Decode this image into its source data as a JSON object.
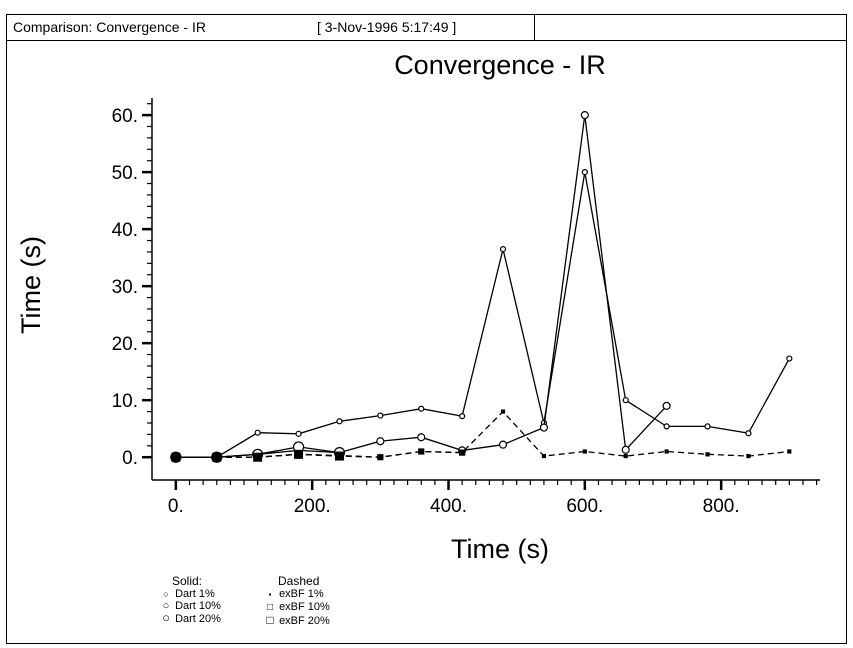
{
  "window": {
    "title": "Comparison: Convergence - IR",
    "timestamp": "[ 3-Nov-1996 5:17:49 ]"
  },
  "chart_data": {
    "type": "line",
    "title": "Convergence - IR",
    "xlabel": "Time (s)",
    "ylabel": "Time (s)",
    "xlim": [
      -35,
      945
    ],
    "ylim": [
      -4,
      63
    ],
    "x_ticks": [
      0,
      200,
      400,
      600,
      800
    ],
    "x_tick_labels": [
      "0.",
      "200.",
      "400.",
      "600.",
      "800."
    ],
    "y_ticks": [
      0,
      10,
      20,
      30,
      40,
      50,
      60
    ],
    "y_tick_labels": [
      "0.",
      "10.",
      "20.",
      "30.",
      "40.",
      "50.",
      "60."
    ],
    "grid": false,
    "series": [
      {
        "name": "Dart 1%",
        "style": "solid",
        "marker": "circle-small",
        "points": [
          [
            0,
            0
          ],
          [
            60,
            0
          ],
          [
            120,
            4.3
          ],
          [
            180,
            4.1
          ],
          [
            240,
            6.3
          ],
          [
            300,
            7.3
          ],
          [
            360,
            8.5
          ],
          [
            420,
            7.2
          ],
          [
            480,
            36.5
          ],
          [
            540,
            6
          ],
          [
            600,
            50
          ],
          [
            660,
            10
          ],
          [
            720,
            5.4
          ],
          [
            780,
            5.4
          ],
          [
            840,
            4.2
          ],
          [
            900,
            17.3
          ]
        ]
      },
      {
        "name": "Dart 10%",
        "style": "solid",
        "marker": "circle-medium",
        "points": [
          [
            0,
            0
          ],
          [
            60,
            0
          ],
          [
            120,
            0.5
          ],
          [
            180,
            1.2
          ],
          [
            240,
            0.8
          ],
          [
            300,
            2.8
          ],
          [
            360,
            3.5
          ],
          [
            420,
            1.2
          ],
          [
            480,
            2.2
          ],
          [
            540,
            5.2
          ],
          [
            600,
            60
          ],
          [
            660,
            1.3
          ],
          [
            720,
            9
          ]
        ]
      },
      {
        "name": "Dart 20%",
        "style": "solid",
        "marker": "circle-large",
        "points": [
          [
            0,
            0
          ],
          [
            60,
            0
          ],
          [
            120,
            0.5
          ],
          [
            180,
            1.8
          ],
          [
            240,
            0.8
          ]
        ]
      },
      {
        "name": "exBF 1%",
        "style": "dashed",
        "marker": "square-small",
        "points": [
          [
            0,
            0
          ],
          [
            60,
            0
          ],
          [
            120,
            0
          ],
          [
            180,
            0.5
          ],
          [
            240,
            0.2
          ],
          [
            300,
            0
          ],
          [
            360,
            1
          ],
          [
            420,
            0.8
          ],
          [
            480,
            8
          ],
          [
            540,
            0.2
          ],
          [
            600,
            1
          ],
          [
            660,
            0.2
          ],
          [
            720,
            1
          ],
          [
            780,
            0.5
          ],
          [
            840,
            0.2
          ],
          [
            900,
            1
          ]
        ]
      },
      {
        "name": "exBF 10%",
        "style": "dashed",
        "marker": "square-medium",
        "points": [
          [
            0,
            0
          ],
          [
            60,
            0
          ],
          [
            120,
            0
          ],
          [
            180,
            0.5
          ],
          [
            240,
            0.3
          ],
          [
            300,
            0
          ],
          [
            360,
            1
          ],
          [
            420,
            0.8
          ]
        ]
      },
      {
        "name": "exBF 20%",
        "style": "dashed",
        "marker": "square-large",
        "points": [
          [
            0,
            0
          ],
          [
            60,
            0
          ],
          [
            120,
            0
          ],
          [
            180,
            0.5
          ],
          [
            240,
            0.2
          ]
        ]
      }
    ],
    "legend": {
      "placement": "bottom-left",
      "solid_header": "Solid:",
      "dashed_header": "Dashed",
      "solid_items": [
        {
          "symbol": "○",
          "label": "Dart 1%"
        },
        {
          "symbol": "○",
          "label": "Dart 10%"
        },
        {
          "symbol": "○",
          "label": "Dart 20%"
        }
      ],
      "dashed_items": [
        {
          "symbol": "▪",
          "label": "exBF 1%"
        },
        {
          "symbol": "□",
          "label": "exBF 10%"
        },
        {
          "symbol": "□",
          "label": "exBF 20%"
        }
      ]
    }
  }
}
